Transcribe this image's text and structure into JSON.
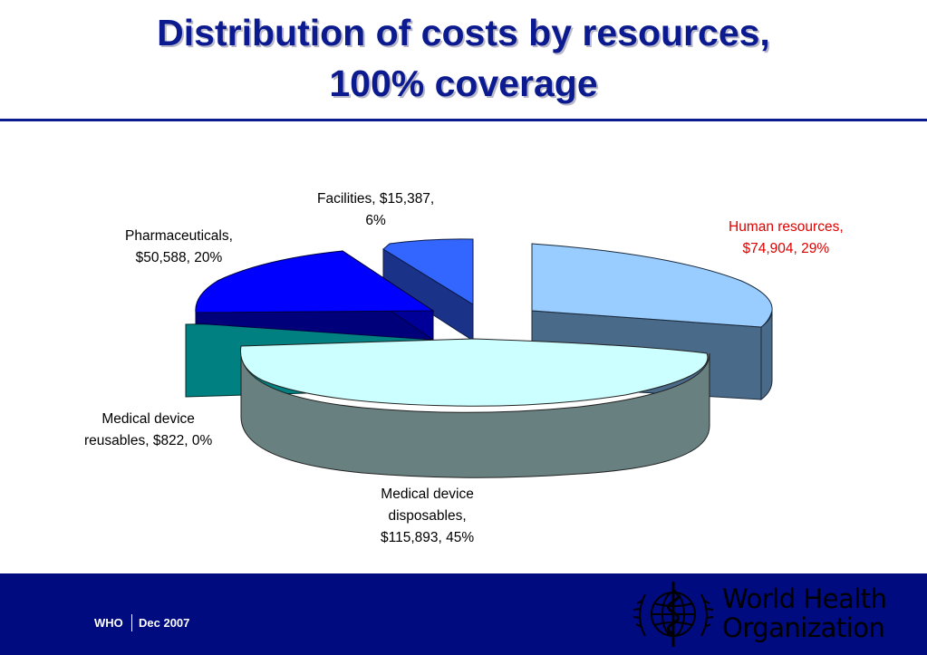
{
  "slide": {
    "title_line1": "Distribution of costs by resources,",
    "title_line2": "100% coverage"
  },
  "chart_data": {
    "type": "pie",
    "style": "3d-exploded",
    "title": "",
    "slices": [
      {
        "name": "Human resources",
        "value": 74904,
        "percent": 29,
        "label_line1": "Human resources,",
        "label_line2": "$74,904, 29%",
        "top_color": "#99ccff",
        "side_color": "#4a6a8a",
        "label_color": "#e00000"
      },
      {
        "name": "Medical device disposables",
        "value": 115893,
        "percent": 45,
        "label_line1": "Medical device",
        "label_line2": "disposables,",
        "label_line3": "$115,893, 45%",
        "top_color": "#ccffff",
        "side_color": "#688080",
        "label_color": "#000000"
      },
      {
        "name": "Medical device reusables",
        "value": 822,
        "percent": 0,
        "label_line1": "Medical device",
        "label_line2": "reusables, $822, 0%",
        "top_color": "#008080",
        "side_color": "#00605f",
        "label_color": "#000000"
      },
      {
        "name": "Pharmaceuticals",
        "value": 50588,
        "percent": 20,
        "label_line1": "Pharmaceuticals,",
        "label_line2": "$50,588, 20%",
        "top_color": "#0000ff",
        "side_color": "#00007a",
        "label_color": "#000000"
      },
      {
        "name": "Facilities",
        "value": 15387,
        "percent": 6,
        "label_line1": "Facilities, $15,387,",
        "label_line2": "6%",
        "top_color": "#3366ff",
        "side_color": "#1a3388",
        "label_color": "#000000"
      }
    ]
  },
  "footer": {
    "org": "WHO",
    "date": "Dec 2007",
    "logo_line1": "World Health",
    "logo_line2": "Organization",
    "background_color": "#000b80"
  }
}
